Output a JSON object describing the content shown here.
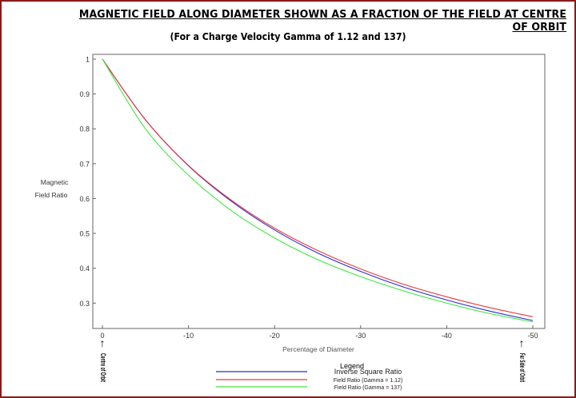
{
  "chart_data": {
    "type": "line",
    "title": "MAGNETIC FIELD ALONG DIAMETER SHOWN AS A FRACTION OF THE FIELD AT CENTRE OF ORBIT",
    "subtitle": "(For a Charge Velocity Gamma of 1.12 and 137)",
    "xlabel": "Percentage of Diameter",
    "ylabel": "Magnetic Field Ratio",
    "ylabel_lines": [
      "Magnetic",
      "Field Ratio"
    ],
    "xlim": [
      0,
      -50
    ],
    "ylim": [
      0.25,
      1.0
    ],
    "x_ticks": [
      0,
      -10,
      -20,
      -30,
      -40,
      -50
    ],
    "y_ticks": [
      0.3,
      0.4,
      0.5,
      0.6,
      0.7,
      0.8,
      0.9,
      1
    ],
    "x_annotations": {
      "left": "Centre of Orbit",
      "right": "Far Side of Orbit"
    },
    "legend_title": "Legend",
    "legend_placement": "bottom-center",
    "grid": false,
    "series": [
      {
        "name": "Inverse Square Ratio",
        "color": "#2b2bd6",
        "x": [
          0,
          -5,
          -10,
          -15,
          -20,
          -25,
          -30,
          -35,
          -40,
          -45,
          -50
        ],
        "values": [
          1.0,
          0.826,
          0.694,
          0.592,
          0.51,
          0.444,
          0.391,
          0.346,
          0.309,
          0.277,
          0.25
        ]
      },
      {
        "name": "Field Ratio (Gamma = 1.12)",
        "color": "#e83a3a",
        "x": [
          0,
          -5,
          -10,
          -15,
          -20,
          -25,
          -30,
          -35,
          -40,
          -45,
          -50
        ],
        "values": [
          1.0,
          0.826,
          0.695,
          0.595,
          0.515,
          0.451,
          0.398,
          0.354,
          0.318,
          0.287,
          0.261
        ]
      },
      {
        "name": "Field Ratio (Gamma = 137)",
        "color": "#3ee83e",
        "x": [
          0,
          -5,
          -10,
          -15,
          -20,
          -25,
          -30,
          -35,
          -40,
          -45,
          -50
        ],
        "values": [
          1.0,
          0.8,
          0.667,
          0.565,
          0.487,
          0.425,
          0.376,
          0.335,
          0.3,
          0.27,
          0.246
        ]
      }
    ]
  }
}
